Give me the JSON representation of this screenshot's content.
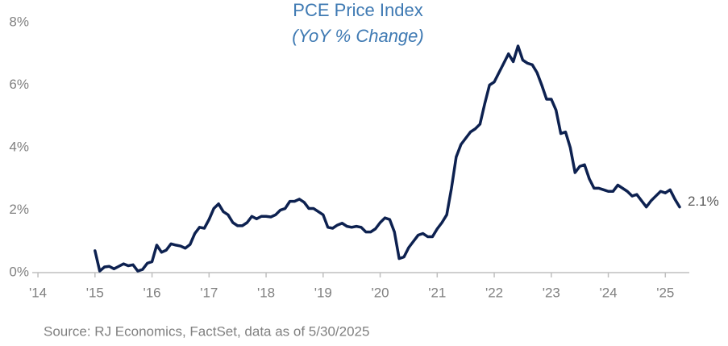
{
  "chart_data": {
    "type": "line",
    "title": "PCE Price Index",
    "subtitle": "(YoY % Change)",
    "source": "Source: RJ Economics, FactSet, data as of 5/30/2025",
    "color": "#0d2150",
    "grid": false,
    "xlim": [
      2013.9,
      2025.42
    ],
    "ylim": [
      0,
      8
    ],
    "xticks": [
      {
        "value": 2014,
        "label": "'14"
      },
      {
        "value": 2015,
        "label": "'15"
      },
      {
        "value": 2016,
        "label": "'16"
      },
      {
        "value": 2017,
        "label": "'17"
      },
      {
        "value": 2018,
        "label": "'18"
      },
      {
        "value": 2019,
        "label": "'19"
      },
      {
        "value": 2020,
        "label": "'20"
      },
      {
        "value": 2021,
        "label": "'21"
      },
      {
        "value": 2022,
        "label": "'22"
      },
      {
        "value": 2023,
        "label": "'23"
      },
      {
        "value": 2024,
        "label": "'24"
      },
      {
        "value": 2025,
        "label": "'25"
      }
    ],
    "yticks": [
      {
        "value": 0,
        "label": "0%"
      },
      {
        "value": 2,
        "label": "2%"
      },
      {
        "value": 4,
        "label": "4%"
      },
      {
        "value": 6,
        "label": "6%"
      },
      {
        "value": 8,
        "label": "8%"
      }
    ],
    "x": [
      2015,
      2015.083,
      2015.167,
      2015.25,
      2015.333,
      2015.417,
      2015.5,
      2015.583,
      2015.667,
      2015.75,
      2015.833,
      2015.917,
      2016,
      2016.083,
      2016.167,
      2016.25,
      2016.333,
      2016.417,
      2016.5,
      2016.583,
      2016.667,
      2016.75,
      2016.833,
      2016.917,
      2017,
      2017.083,
      2017.167,
      2017.25,
      2017.333,
      2017.417,
      2017.5,
      2017.583,
      2017.667,
      2017.75,
      2017.833,
      2017.917,
      2018,
      2018.083,
      2018.167,
      2018.25,
      2018.333,
      2018.417,
      2018.5,
      2018.583,
      2018.667,
      2018.75,
      2018.833,
      2018.917,
      2019,
      2019.083,
      2019.167,
      2019.25,
      2019.333,
      2019.417,
      2019.5,
      2019.583,
      2019.667,
      2019.75,
      2019.833,
      2019.917,
      2020,
      2020.083,
      2020.167,
      2020.25,
      2020.333,
      2020.417,
      2020.5,
      2020.583,
      2020.667,
      2020.75,
      2020.833,
      2020.917,
      2021,
      2021.083,
      2021.167,
      2021.25,
      2021.333,
      2021.417,
      2021.5,
      2021.583,
      2021.667,
      2021.75,
      2021.833,
      2021.917,
      2022,
      2022.083,
      2022.167,
      2022.25,
      2022.333,
      2022.417,
      2022.5,
      2022.583,
      2022.667,
      2022.75,
      2022.833,
      2022.917,
      2023,
      2023.083,
      2023.167,
      2023.25,
      2023.333,
      2023.417,
      2023.5,
      2023.583,
      2023.667,
      2023.75,
      2023.833,
      2023.917,
      2024,
      2024.083,
      2024.167,
      2024.25,
      2024.333,
      2024.417,
      2024.5,
      2024.583,
      2024.667,
      2024.75,
      2024.833,
      2024.917,
      2025,
      2025.083,
      2025.167,
      2025.25
    ],
    "values": [
      0.7,
      0.05,
      0.18,
      0.2,
      0.12,
      0.2,
      0.28,
      0.22,
      0.25,
      0.05,
      0.1,
      0.3,
      0.35,
      0.88,
      0.65,
      0.72,
      0.92,
      0.88,
      0.85,
      0.78,
      0.9,
      1.25,
      1.45,
      1.42,
      1.7,
      2.05,
      2.2,
      1.95,
      1.85,
      1.6,
      1.5,
      1.5,
      1.6,
      1.8,
      1.72,
      1.8,
      1.8,
      1.78,
      1.85,
      2.0,
      2.05,
      2.28,
      2.28,
      2.35,
      2.25,
      2.05,
      2.05,
      1.95,
      1.85,
      1.45,
      1.42,
      1.52,
      1.58,
      1.48,
      1.45,
      1.48,
      1.45,
      1.3,
      1.3,
      1.4,
      1.6,
      1.75,
      1.7,
      1.3,
      0.45,
      0.5,
      0.8,
      1.0,
      1.2,
      1.25,
      1.15,
      1.15,
      1.4,
      1.6,
      1.85,
      2.7,
      3.7,
      4.1,
      4.3,
      4.5,
      4.6,
      4.75,
      5.4,
      6.0,
      6.1,
      6.4,
      6.7,
      7.0,
      6.75,
      7.25,
      6.8,
      6.7,
      6.65,
      6.4,
      6.0,
      5.55,
      5.55,
      5.2,
      4.45,
      4.5,
      4.0,
      3.2,
      3.4,
      3.45,
      3.0,
      2.7,
      2.7,
      2.65,
      2.6,
      2.6,
      2.8,
      2.7,
      2.6,
      2.45,
      2.5,
      2.3,
      2.1,
      2.3,
      2.45,
      2.6,
      2.55,
      2.65,
      2.35,
      2.1
    ],
    "value_labels": [
      null,
      null,
      null,
      null,
      null,
      null,
      null,
      null,
      null,
      null,
      null,
      null,
      null,
      null,
      null,
      null,
      null,
      null,
      null,
      null,
      null,
      null,
      null,
      null,
      null,
      null,
      null,
      null,
      null,
      null,
      null,
      null,
      null,
      null,
      null,
      null,
      null,
      null,
      null,
      null,
      null,
      null,
      null,
      null,
      null,
      null,
      null,
      null,
      null,
      null,
      null,
      null,
      null,
      null,
      null,
      null,
      null,
      null,
      null,
      null,
      null,
      null,
      null,
      null,
      null,
      null,
      null,
      null,
      null,
      null,
      null,
      null,
      null,
      null,
      null,
      null,
      null,
      null,
      null,
      null,
      null,
      null,
      null,
      null,
      null,
      null,
      null,
      null,
      null,
      null,
      null,
      null,
      null,
      null,
      null,
      null,
      null,
      null,
      null,
      null,
      null,
      null,
      null,
      null,
      null,
      null,
      null,
      null,
      null,
      null,
      null,
      null,
      null,
      null,
      null,
      null,
      null,
      null,
      null,
      null,
      null,
      null,
      null,
      "2.1%"
    ]
  }
}
